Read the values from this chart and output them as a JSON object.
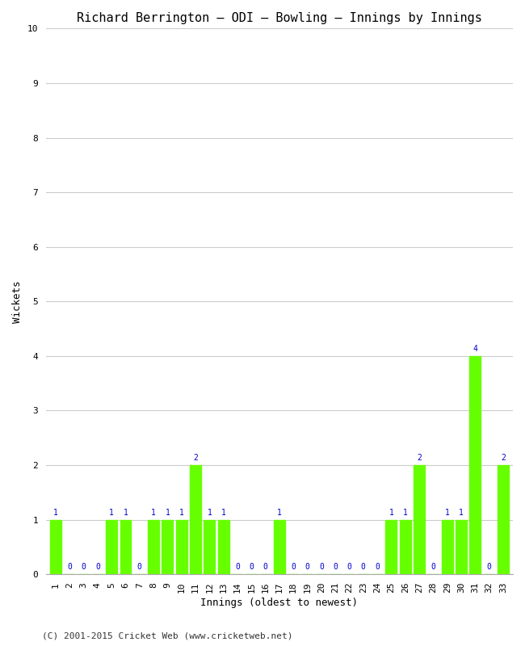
{
  "title": "Richard Berrington – ODI – Bowling – Innings by Innings",
  "xlabel": "Innings (oldest to newest)",
  "ylabel": "Wickets",
  "bar_color": "#66ff00",
  "label_color": "#0000cc",
  "background_color": "#ffffff",
  "grid_color": "#cccccc",
  "ylim": [
    0,
    10
  ],
  "yticks": [
    0,
    1,
    2,
    3,
    4,
    5,
    6,
    7,
    8,
    9,
    10
  ],
  "innings": [
    1,
    2,
    3,
    4,
    5,
    6,
    7,
    8,
    9,
    10,
    11,
    12,
    13,
    14,
    15,
    16,
    17,
    18,
    19,
    20,
    21,
    22,
    23,
    24,
    25,
    26,
    27,
    28,
    29,
    30,
    31,
    32,
    33
  ],
  "wickets": [
    1,
    0,
    0,
    0,
    1,
    1,
    0,
    1,
    1,
    1,
    2,
    1,
    1,
    0,
    0,
    0,
    1,
    0,
    0,
    0,
    0,
    0,
    0,
    0,
    1,
    1,
    2,
    0,
    1,
    1,
    4,
    0,
    2
  ],
  "footer": "(C) 2001-2015 Cricket Web (www.cricketweb.net)",
  "title_fontsize": 11,
  "axis_label_fontsize": 9,
  "tick_fontsize": 8,
  "value_label_fontsize": 7,
  "footer_fontsize": 8
}
